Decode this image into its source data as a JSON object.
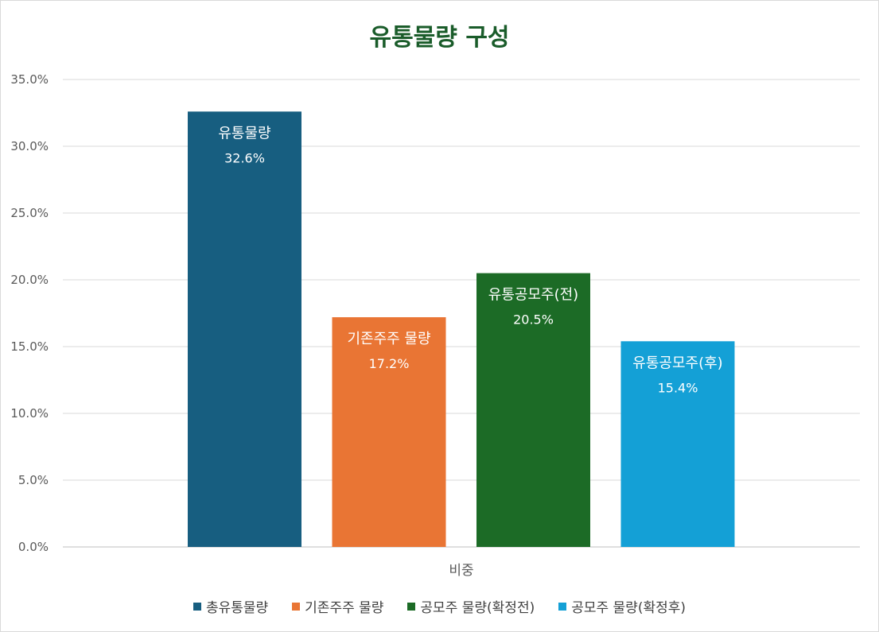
{
  "chart_data": {
    "type": "bar",
    "title": "유통물량 구성",
    "xlabel": "",
    "ylabel": "",
    "category_label": "비중",
    "ylim": [
      0,
      35
    ],
    "yticks": [
      0,
      5,
      10,
      15,
      20,
      25,
      30,
      35
    ],
    "ytick_format": "percent_1dp",
    "grid": true,
    "legend_position": "bottom",
    "series": [
      {
        "name": "총유통물량",
        "bar_label": "유통물량",
        "value": 32.6,
        "value_label": "32.6%",
        "color": "#175e80"
      },
      {
        "name": "기존주주 물량",
        "bar_label": "기존주주 물량",
        "value": 17.2,
        "value_label": "17.2%",
        "color": "#e97534"
      },
      {
        "name": "공모주 물량(확정전)",
        "bar_label": "유통공모주(전)",
        "value": 20.5,
        "value_label": "20.5%",
        "color": "#1c6b26"
      },
      {
        "name": "공모주 물량(확정후)",
        "bar_label": "유통공모주(후)",
        "value": 15.4,
        "value_label": "15.4%",
        "color": "#14a0d6"
      }
    ]
  }
}
